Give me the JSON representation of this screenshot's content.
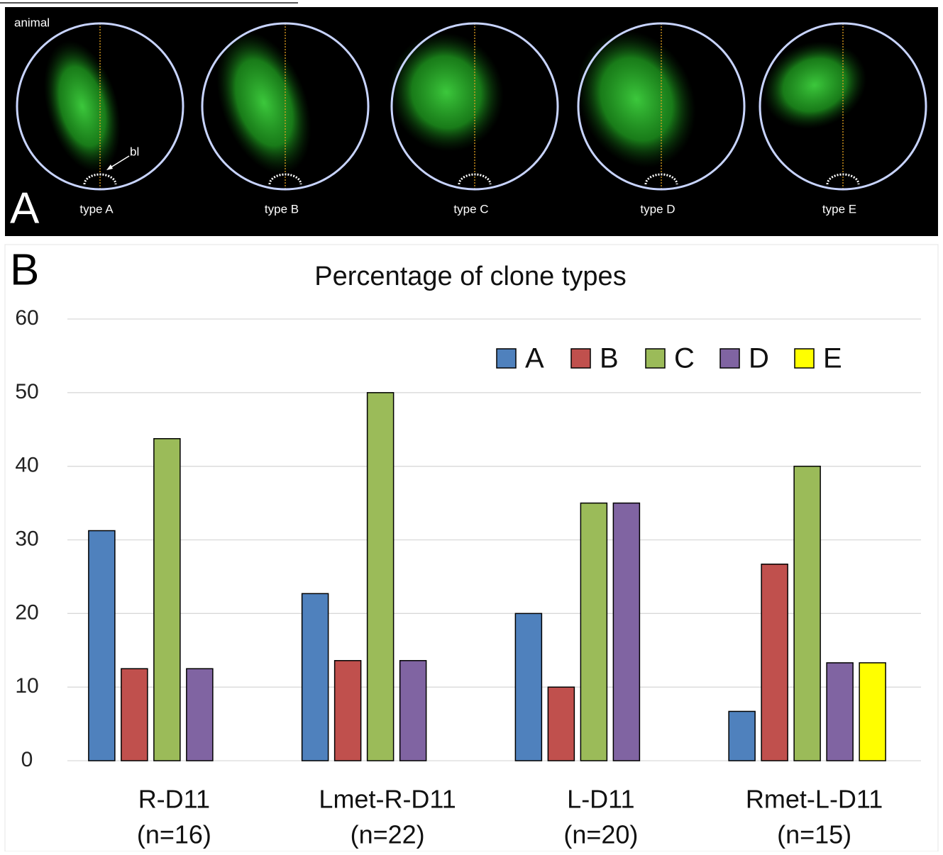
{
  "panel_a": {
    "label": "A",
    "animal_label": "animal",
    "bl_label": "bl",
    "types": [
      "type A",
      "type B",
      "type C",
      "type D",
      "type E"
    ]
  },
  "chart_data": {
    "type": "bar",
    "panel_label": "B",
    "title": "Percentage of clone types",
    "categories": [
      "R-D11",
      "Lmet-R-D11",
      "L-D11",
      "Rmet-L-D11"
    ],
    "category_sublabels": [
      "(n=16)",
      "(n=22)",
      "(n=20)",
      "(n=15)"
    ],
    "series": [
      {
        "name": "A",
        "color": "#4f81bd",
        "values": [
          31.25,
          22.7,
          20,
          6.7
        ]
      },
      {
        "name": "B",
        "color": "#c0504d",
        "values": [
          12.5,
          13.6,
          10,
          26.7
        ]
      },
      {
        "name": "C",
        "color": "#9bbb59",
        "values": [
          43.75,
          50,
          35,
          40
        ]
      },
      {
        "name": "D",
        "color": "#8064a2",
        "values": [
          12.5,
          13.6,
          35,
          13.3
        ]
      },
      {
        "name": "E",
        "color": "#ffff00",
        "values": [
          0,
          0,
          0,
          13.3
        ]
      }
    ],
    "ylim": [
      0,
      60
    ],
    "yticks": [
      0,
      10,
      20,
      30,
      40,
      50,
      60
    ],
    "grid": true,
    "legend": "top-right"
  }
}
